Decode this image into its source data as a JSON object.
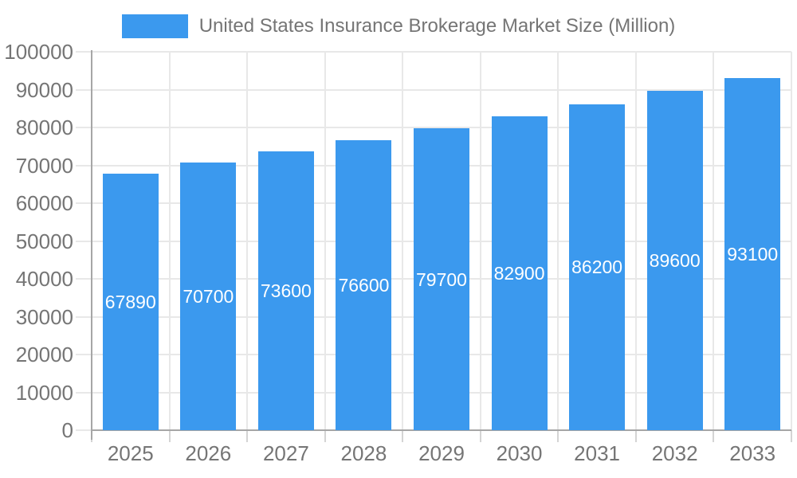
{
  "chart_data": {
    "type": "bar",
    "title": "United States Insurance Brokerage Market Size (Million)",
    "categories": [
      "2025",
      "2026",
      "2027",
      "2028",
      "2029",
      "2030",
      "2031",
      "2032",
      "2033"
    ],
    "values": [
      67890,
      70700,
      73600,
      76600,
      79700,
      82900,
      86200,
      89600,
      93100
    ],
    "bar_labels": [
      "67890",
      "70700",
      "73600",
      "76600",
      "79700",
      "82900",
      "86200",
      "89600",
      "93100"
    ],
    "xlabel": "",
    "ylabel": "",
    "ylim": [
      0,
      100000
    ],
    "ytick_step": 10000,
    "ytick_labels": [
      "0",
      "10000",
      "20000",
      "30000",
      "40000",
      "50000",
      "60000",
      "70000",
      "80000",
      "90000",
      "100000"
    ],
    "grid": true,
    "legend_position": "top",
    "colors": {
      "bar": "#3B99EE",
      "bar_label_text": "#FFFFFF",
      "grid_line": "#E8E8E8",
      "axis_line": "#A6A6A6",
      "axis_tick": "#D4D4D4",
      "tick_text": "#757575",
      "background": "#FFFFFF"
    }
  }
}
